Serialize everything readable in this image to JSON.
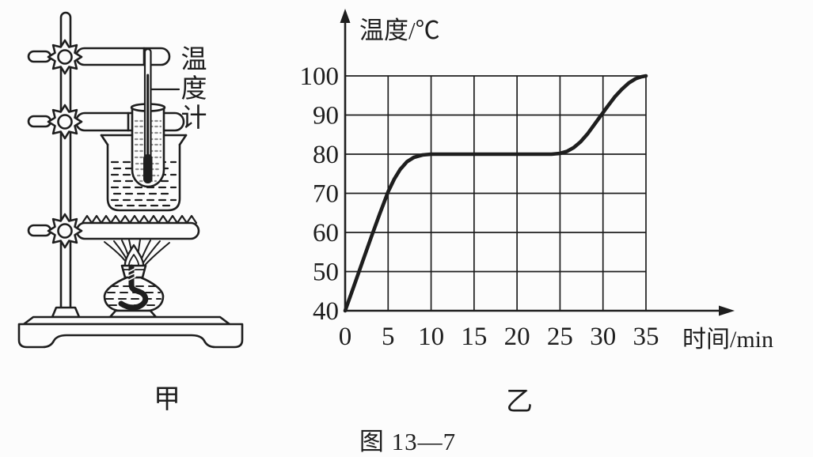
{
  "figure": {
    "caption": "图 13—7",
    "left_label": "甲",
    "right_label": "乙"
  },
  "apparatus": {
    "thermometer_label": "温度计",
    "parts": [
      "iron-stand",
      "clamp",
      "thermometer",
      "test-tube",
      "beaker",
      "water",
      "wire-gauze",
      "flame",
      "alcohol-lamp"
    ]
  },
  "chart_data": {
    "type": "line",
    "title": "",
    "xlabel": "时间/min",
    "ylabel": "温度/℃",
    "x_ticks": [
      0,
      5,
      10,
      15,
      20,
      25,
      30,
      35
    ],
    "y_ticks": [
      40,
      50,
      60,
      70,
      80,
      90,
      100
    ],
    "xlim": [
      0,
      35
    ],
    "ylim": [
      40,
      100
    ],
    "grid": true,
    "legend": "none",
    "series": [
      {
        "name": "heating-curve",
        "points": [
          [
            0,
            40
          ],
          [
            1,
            46.2
          ],
          [
            2,
            52.4
          ],
          [
            3,
            58.6
          ],
          [
            4,
            64.6
          ],
          [
            5,
            70.4
          ],
          [
            5.7,
            73.6
          ],
          [
            6.4,
            76.1
          ],
          [
            7.2,
            78.1
          ],
          [
            8,
            79.2
          ],
          [
            9,
            79.8
          ],
          [
            10,
            80
          ],
          [
            12,
            80
          ],
          [
            14,
            80
          ],
          [
            16,
            80
          ],
          [
            18,
            80
          ],
          [
            20,
            80
          ],
          [
            22,
            80
          ],
          [
            24,
            80
          ],
          [
            25,
            80.2
          ],
          [
            25.8,
            80.7
          ],
          [
            26.6,
            81.7
          ],
          [
            27.4,
            83.2
          ],
          [
            28.2,
            85.2
          ],
          [
            29,
            87.6
          ],
          [
            29.8,
            90
          ],
          [
            30.6,
            92.4
          ],
          [
            31.4,
            94.7
          ],
          [
            32.2,
            96.6
          ],
          [
            33,
            98.2
          ],
          [
            33.8,
            99.3
          ],
          [
            34.5,
            99.8
          ],
          [
            35,
            100
          ]
        ]
      }
    ]
  },
  "colors": {
    "ink": "#1e1e1e",
    "grid": "#2a2a2a",
    "stipple": "#8f8f8f",
    "background": "#fcfcfc"
  }
}
